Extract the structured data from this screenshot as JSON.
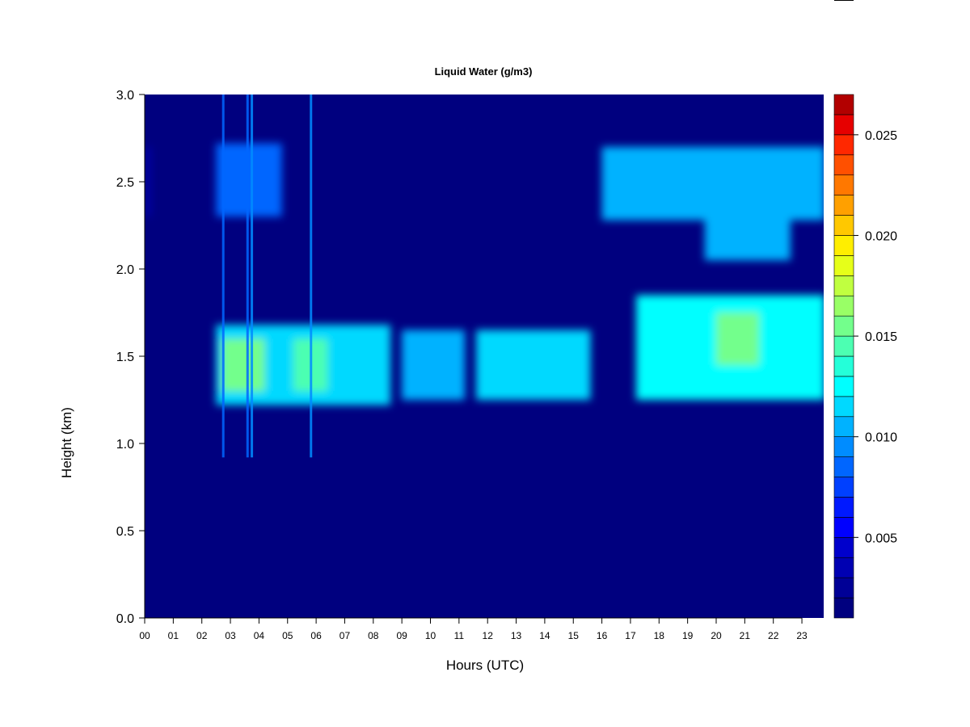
{
  "chart_data": {
    "type": "heatmap",
    "title": "Liquid Water (g/m3)",
    "xlabel": "Hours (UTC)",
    "ylabel": "Height (km)",
    "xlim": [
      0,
      23.8
    ],
    "ylim": [
      0,
      3.0
    ],
    "x_ticks": [
      "00",
      "01",
      "02",
      "03",
      "04",
      "05",
      "06",
      "07",
      "08",
      "09",
      "10",
      "11",
      "12",
      "13",
      "14",
      "15",
      "16",
      "17",
      "18",
      "19",
      "20",
      "21",
      "22",
      "23"
    ],
    "y_ticks": [
      "0.0",
      "0.5",
      "1.0",
      "1.5",
      "2.0",
      "2.5",
      "3.0"
    ],
    "colorbar": {
      "range": [
        0.001,
        0.027
      ],
      "ticks": [
        "0.005",
        "0.010",
        "0.015",
        "0.020",
        "0.025"
      ],
      "tick_values": [
        0.005,
        0.01,
        0.015,
        0.02,
        0.025
      ],
      "levels": [
        0.001,
        0.002,
        0.003,
        0.004,
        0.005,
        0.006,
        0.007,
        0.008,
        0.009,
        0.01,
        0.011,
        0.012,
        0.013,
        0.014,
        0.015,
        0.016,
        0.017,
        0.018,
        0.019,
        0.02,
        0.021,
        0.022,
        0.023,
        0.024,
        0.025,
        0.026,
        0.027
      ],
      "colors": [
        "#00007f",
        "#000096",
        "#0000b2",
        "#0000cc",
        "#0000ff",
        "#0019ff",
        "#0040ff",
        "#0066ff",
        "#008cff",
        "#00b2ff",
        "#00d9ff",
        "#00ffff",
        "#24ffd9",
        "#4cffb2",
        "#73ff8c",
        "#99ff66",
        "#c0ff40",
        "#e6ff19",
        "#ffee00",
        "#ffc800",
        "#ffa000",
        "#ff7800",
        "#ff5000",
        "#ff2800",
        "#e60000",
        "#b20000"
      ]
    },
    "regions": [
      {
        "x0": 0.05,
        "x1": 0.2,
        "y0": 2.3,
        "y1": 2.7,
        "value": 0.003
      },
      {
        "x0": 2.5,
        "x1": 4.8,
        "y0": 2.3,
        "y1": 2.72,
        "value": 0.008
      },
      {
        "x0": 2.5,
        "x1": 8.6,
        "y0": 1.22,
        "y1": 1.68,
        "value": 0.011
      },
      {
        "x0": 2.7,
        "x1": 4.2,
        "y0": 1.3,
        "y1": 1.6,
        "value": 0.015
      },
      {
        "x0": 5.2,
        "x1": 6.4,
        "y0": 1.3,
        "y1": 1.6,
        "value": 0.014
      },
      {
        "x0": 9.0,
        "x1": 11.2,
        "y0": 1.25,
        "y1": 1.65,
        "value": 0.01
      },
      {
        "x0": 11.6,
        "x1": 15.6,
        "y0": 1.25,
        "y1": 1.65,
        "value": 0.011
      },
      {
        "x0": 16.0,
        "x1": 23.8,
        "y0": 2.28,
        "y1": 2.7,
        "value": 0.01
      },
      {
        "x0": 19.6,
        "x1": 22.6,
        "y0": 2.05,
        "y1": 2.35,
        "value": 0.01
      },
      {
        "x0": 17.2,
        "x1": 23.8,
        "y0": 1.25,
        "y1": 1.85,
        "value": 0.012
      },
      {
        "x0": 20.0,
        "x1": 21.5,
        "y0": 1.45,
        "y1": 1.75,
        "value": 0.015
      }
    ],
    "spikes": [
      {
        "x": 2.75,
        "y0": 0.92,
        "y1": 3.0,
        "value": 0.008
      },
      {
        "x": 3.6,
        "y0": 0.92,
        "y1": 3.0,
        "value": 0.008
      },
      {
        "x": 3.75,
        "y0": 0.92,
        "y1": 3.0,
        "value": 0.009
      },
      {
        "x": 5.82,
        "y0": 0.92,
        "y1": 3.0,
        "value": 0.009
      }
    ]
  }
}
